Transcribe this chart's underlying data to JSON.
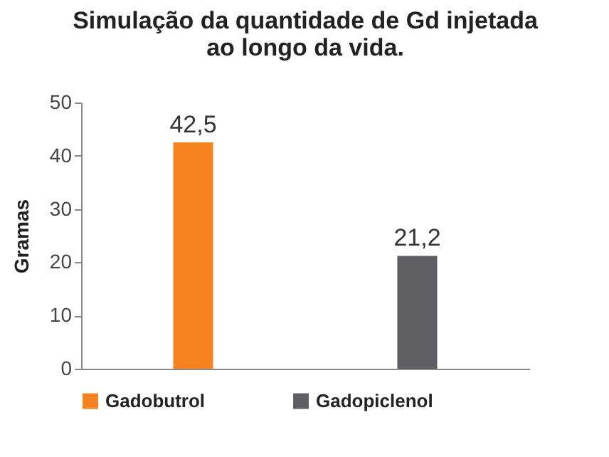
{
  "chart_data": {
    "type": "bar",
    "title": "Simulação da quantidade de Gd injetada ao longo da vida.",
    "ylabel": "Gramas",
    "categories": [
      null,
      null
    ],
    "series": [
      {
        "name": "Gadobutrol",
        "color": "#f5821f",
        "values": [
          42.5,
          null
        ],
        "value_labels": [
          "42,5",
          null
        ]
      },
      {
        "name": "Gadopiclenol",
        "color": "#5f5f63",
        "values": [
          null,
          21.2
        ],
        "value_labels": [
          null,
          "21,2"
        ]
      }
    ],
    "ylim": [
      0,
      50
    ],
    "yticks": [
      0,
      10,
      20,
      30,
      40,
      50
    ],
    "grid": false,
    "legend": "bottom"
  }
}
